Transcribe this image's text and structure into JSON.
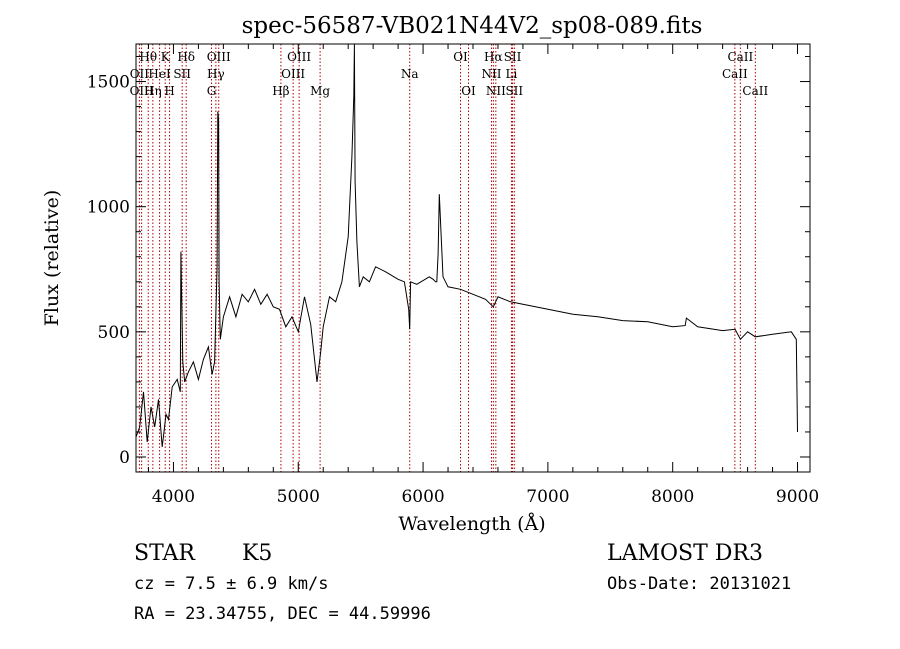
{
  "chart_data": {
    "type": "line",
    "title": "spec-56587-VB021N44V2_sp08-089.fits",
    "xlabel": "Wavelength (Å)",
    "ylabel": "Flux (relative)",
    "xlim": [
      3700,
      9100
    ],
    "ylim": [
      -60,
      1650
    ],
    "xticks": [
      4000,
      5000,
      6000,
      7000,
      8000,
      9000
    ],
    "yticks": [
      0,
      500,
      1000,
      1500
    ],
    "line_color": "#000000",
    "marker_color": "#b00000",
    "spectral_lines": [
      {
        "label": "Hθ",
        "wave": 3798,
        "row": 0
      },
      {
        "label": "OII",
        "wave": 3727,
        "row": 1
      },
      {
        "label": "OIII",
        "wave": 3745,
        "row": 2
      },
      {
        "label": "K",
        "wave": 3934,
        "row": 0
      },
      {
        "label": "HeI",
        "wave": 3889,
        "row": 1
      },
      {
        "label": "Hη",
        "wave": 3835,
        "row": 2
      },
      {
        "label": "SII",
        "wave": 4070,
        "row": 1
      },
      {
        "label": "H",
        "wave": 3969,
        "row": 2
      },
      {
        "label": "Hδ",
        "wave": 4102,
        "row": 0
      },
      {
        "label": "OIII",
        "wave": 4363,
        "row": 0
      },
      {
        "label": "Hγ",
        "wave": 4340,
        "row": 1
      },
      {
        "label": "G",
        "wave": 4305,
        "row": 2
      },
      {
        "label": "OIII",
        "wave": 5007,
        "row": 0
      },
      {
        "label": "OIII",
        "wave": 4959,
        "row": 1
      },
      {
        "label": "Hβ",
        "wave": 4861,
        "row": 2
      },
      {
        "label": "Mg",
        "wave": 5175,
        "row": 2
      },
      {
        "label": "Na",
        "wave": 5893,
        "row": 1
      },
      {
        "label": "OI",
        "wave": 6300,
        "row": 0
      },
      {
        "label": "OI",
        "wave": 6364,
        "row": 2
      },
      {
        "label": "Hα",
        "wave": 6563,
        "row": 0
      },
      {
        "label": "SII",
        "wave": 6717,
        "row": 0
      },
      {
        "label": "NII",
        "wave": 6548,
        "row": 1
      },
      {
        "label": "Li",
        "wave": 6708,
        "row": 1
      },
      {
        "label": "NII",
        "wave": 6583,
        "row": 2
      },
      {
        "label": "SII",
        "wave": 6731,
        "row": 2
      },
      {
        "label": "CaII",
        "wave": 8542,
        "row": 0
      },
      {
        "label": "CaII",
        "wave": 8498,
        "row": 1
      },
      {
        "label": "CaII",
        "wave": 8662,
        "row": 2
      }
    ],
    "spectrum": {
      "name": "flux",
      "x": [
        3700,
        3730,
        3760,
        3790,
        3820,
        3850,
        3880,
        3910,
        3940,
        3960,
        3990,
        4030,
        4055,
        4060,
        4075,
        4090,
        4120,
        4160,
        4200,
        4240,
        4280,
        4310,
        4330,
        4350,
        4355,
        4362,
        4366,
        4375,
        4400,
        4450,
        4500,
        4550,
        4600,
        4650,
        4700,
        4750,
        4800,
        4850,
        4900,
        4950,
        5000,
        5050,
        5100,
        5150,
        5180,
        5200,
        5250,
        5300,
        5350,
        5400,
        5430,
        5445,
        5450,
        5455,
        5470,
        5490,
        5520,
        5570,
        5620,
        5700,
        5800,
        5850,
        5885,
        5893,
        5900,
        5950,
        6050,
        6080,
        6100,
        6110,
        6120,
        6130,
        6160,
        6200,
        6300,
        6400,
        6500,
        6563,
        6600,
        6700,
        6800,
        7000,
        7200,
        7400,
        7600,
        7800,
        8000,
        8100,
        8110,
        8200,
        8400,
        8500,
        8542,
        8600,
        8662,
        8800,
        8950,
        8990,
        9000
      ],
      "y": [
        80,
        120,
        260,
        60,
        200,
        120,
        230,
        40,
        170,
        150,
        280,
        310,
        260,
        820,
        380,
        300,
        340,
        380,
        310,
        390,
        440,
        330,
        380,
        760,
        1380,
        1350,
        700,
        470,
        560,
        640,
        560,
        650,
        620,
        670,
        610,
        650,
        600,
        590,
        520,
        560,
        500,
        640,
        530,
        300,
        420,
        520,
        640,
        620,
        700,
        880,
        1200,
        1440,
        1650,
        1100,
        860,
        680,
        720,
        700,
        760,
        740,
        710,
        700,
        590,
        510,
        700,
        690,
        720,
        710,
        700,
        700,
        810,
        1050,
        720,
        680,
        670,
        650,
        630,
        600,
        640,
        620,
        610,
        590,
        570,
        560,
        545,
        540,
        520,
        525,
        555,
        520,
        505,
        510,
        470,
        500,
        480,
        490,
        500,
        470,
        100
      ]
    }
  },
  "info": {
    "object_type": "STAR",
    "subclass": "K5",
    "survey": "LAMOST DR3",
    "velocity": "cz = 7.5 ± 6.9 km/s",
    "obs_date": "Obs-Date: 20131021",
    "coords": "RA =  23.34755, DEC =  44.59996"
  }
}
